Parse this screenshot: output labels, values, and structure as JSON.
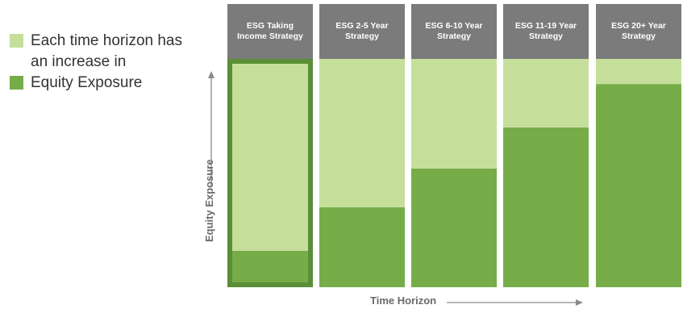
{
  "legend": {
    "items": [
      {
        "text": "Each time horizon has an increase in",
        "color": "#c5df9b"
      },
      {
        "text": "Equity Exposure",
        "color": "#76ad49"
      }
    ]
  },
  "chart_data": {
    "type": "bar",
    "stacked": true,
    "categories": [
      "ESG Taking Income Strategy",
      "ESG 2-5 Year Strategy",
      "ESG 6-10 Year Strategy",
      "ESG 11-19 Year Strategy",
      "ESG 20+ Year Strategy"
    ],
    "category_lines": [
      [
        "ESG Taking",
        "Income Strategy"
      ],
      [
        "ESG 2-5 Year",
        "Strategy"
      ],
      [
        "ESG 6-10 Year",
        "Strategy"
      ],
      [
        "ESG 11-19 Year",
        "Strategy"
      ],
      [
        "ESG 20+ Year",
        "Strategy"
      ]
    ],
    "series": [
      {
        "values": [
          16,
          35,
          52,
          70,
          89
        ],
        "color": "#76ad49"
      },
      {
        "values": [
          84,
          65,
          48,
          30,
          11
        ],
        "color": "#c5df9b"
      }
    ],
    "highlighted_category": "ESG Taking Income Strategy",
    "highlight_color": "#5a8e37",
    "header_color": "#7b7b7b",
    "ylim": [
      0,
      100
    ],
    "xlabel": "Time Horizon",
    "ylabel": "Equity Exposure",
    "axis_color": "#8a8a8a",
    "grid": false
  }
}
